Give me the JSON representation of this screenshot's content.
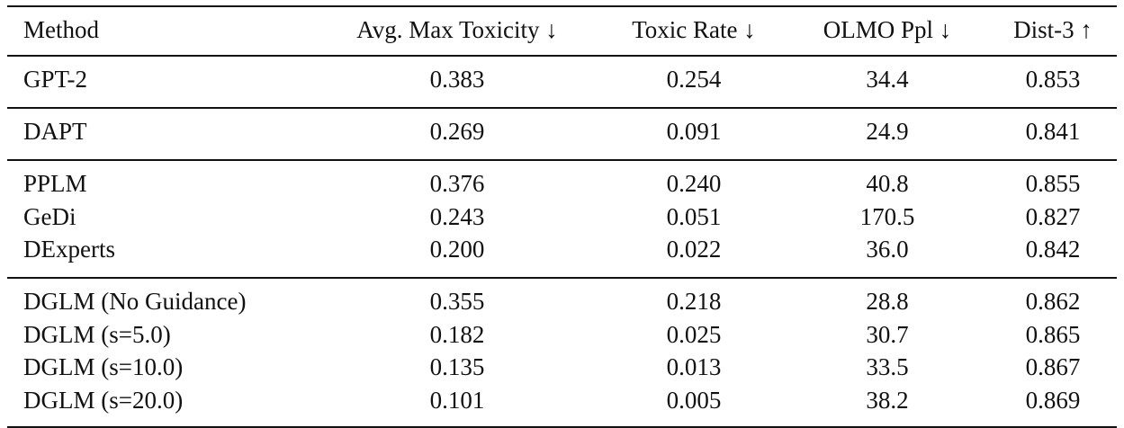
{
  "table": {
    "header": [
      "Method",
      "Avg. Max Toxicity ↓",
      "Toxic Rate ↓",
      "OLMO Ppl ↓",
      "Dist-3 ↑"
    ],
    "groups": [
      [
        [
          "GPT-2",
          "0.383",
          "0.254",
          "34.4",
          "0.853"
        ]
      ],
      [
        [
          "DAPT",
          "0.269",
          "0.091",
          "24.9",
          "0.841"
        ]
      ],
      [
        [
          "PPLM",
          "0.376",
          "0.240",
          "40.8",
          "0.855"
        ],
        [
          "GeDi",
          "0.243",
          "0.051",
          "170.5",
          "0.827"
        ],
        [
          "DExperts",
          "0.200",
          "0.022",
          "36.0",
          "0.842"
        ]
      ],
      [
        [
          "DGLM (No Guidance)",
          "0.355",
          "0.218",
          "28.8",
          "0.862"
        ],
        [
          "DGLM (s=5.0)",
          "0.182",
          "0.025",
          "30.7",
          "0.865"
        ],
        [
          "DGLM (s=10.0)",
          "0.135",
          "0.013",
          "33.5",
          "0.867"
        ],
        [
          "DGLM (s=20.0)",
          "0.101",
          "0.005",
          "38.2",
          "0.869"
        ]
      ]
    ]
  }
}
